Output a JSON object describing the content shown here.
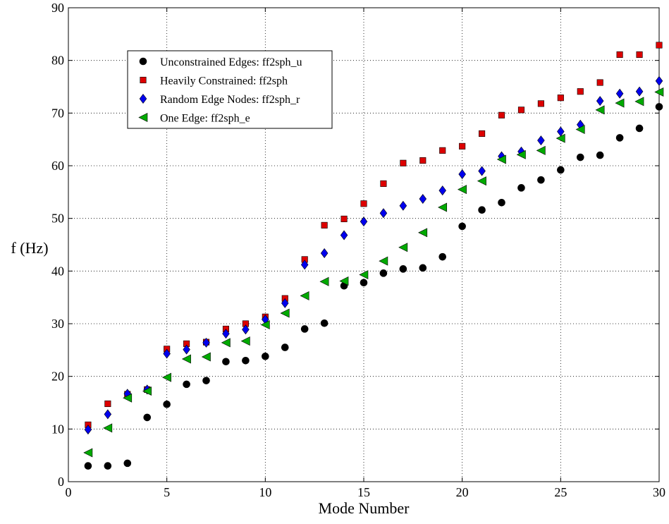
{
  "chart_data": {
    "type": "scatter",
    "title": "",
    "xlabel": "Mode Number",
    "ylabel": "f (Hz)",
    "xlim": [
      0,
      30
    ],
    "ylim": [
      0,
      90
    ],
    "xticks": [
      0,
      5,
      10,
      15,
      20,
      25,
      30
    ],
    "yticks": [
      0,
      10,
      20,
      30,
      40,
      50,
      60,
      70,
      80,
      90
    ],
    "grid": "dotted",
    "legend_position": "top-left",
    "x": [
      1,
      2,
      3,
      4,
      5,
      6,
      7,
      8,
      9,
      10,
      11,
      12,
      13,
      14,
      15,
      16,
      17,
      18,
      19,
      20,
      21,
      22,
      23,
      24,
      25,
      26,
      27,
      28,
      29,
      30
    ],
    "series": [
      {
        "name": "Unconstrained Edges: ff2sph_u",
        "marker": "circle",
        "color": "#000000",
        "values": [
          3.0,
          3.0,
          3.5,
          12.2,
          14.7,
          18.5,
          19.2,
          22.8,
          23.0,
          23.8,
          25.5,
          29.0,
          30.1,
          37.2,
          37.8,
          39.6,
          40.4,
          40.6,
          42.7,
          48.5,
          51.6,
          53.0,
          55.8,
          57.3,
          59.2,
          61.6,
          62.0,
          65.3,
          67.1,
          71.2
        ]
      },
      {
        "name": "Heavily Constrained: ff2sph",
        "marker": "square",
        "color": "#dd0000",
        "values": [
          10.8,
          14.8,
          16.6,
          17.5,
          25.2,
          26.2,
          26.5,
          29.0,
          30.0,
          31.3,
          34.8,
          42.2,
          48.7,
          49.9,
          52.8,
          56.6,
          60.5,
          61.0,
          62.9,
          63.7,
          66.1,
          69.6,
          70.6,
          71.8,
          72.9,
          74.1,
          75.8,
          81.1,
          81.1,
          82.9
        ]
      },
      {
        "name": "Random Edge Nodes: ff2sph_r",
        "marker": "diamond",
        "color": "#0000ee",
        "values": [
          9.9,
          12.8,
          16.7,
          17.5,
          24.3,
          25.1,
          26.4,
          28.1,
          28.9,
          30.8,
          33.9,
          41.2,
          43.4,
          46.8,
          49.4,
          51.0,
          52.4,
          53.7,
          55.3,
          58.4,
          59.0,
          61.8,
          62.7,
          64.8,
          66.5,
          67.8,
          72.3,
          73.7,
          74.1,
          76.1
        ]
      },
      {
        "name": "One Edge: ff2sph_e",
        "marker": "triangle-left",
        "color": "#00aa00",
        "values": [
          5.5,
          10.2,
          15.9,
          17.2,
          19.8,
          23.3,
          23.7,
          26.4,
          26.7,
          29.8,
          32.0,
          35.3,
          38.0,
          38.1,
          39.3,
          41.9,
          44.5,
          47.3,
          52.1,
          55.5,
          57.1,
          61.2,
          62.1,
          62.9,
          65.2,
          66.9,
          70.6,
          71.9,
          72.2,
          74.0
        ]
      }
    ]
  }
}
